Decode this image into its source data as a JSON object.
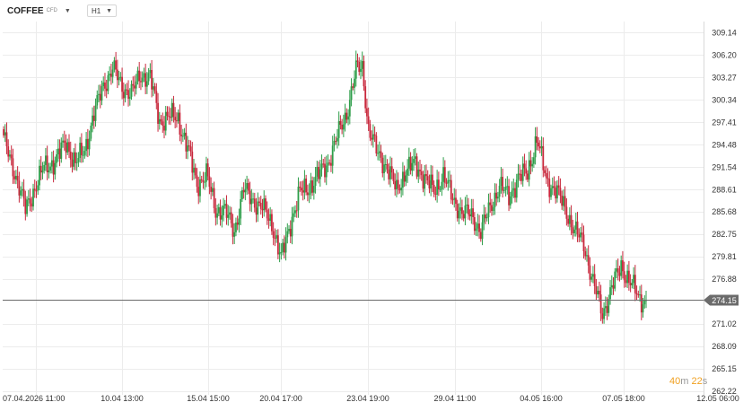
{
  "toolbar": {
    "symbol": "COFFEE",
    "symbol_type": "CFD",
    "timeframe": "H1"
  },
  "timer": {
    "minutes": "40",
    "m": "m",
    "seconds": "22",
    "s": "s"
  },
  "colors": {
    "up": "#2e9e4a",
    "down": "#c8283c",
    "grid": "#ececec",
    "price_line": "#6b6b6b",
    "price_label_bg": "#6b6b6b"
  },
  "chart_data": {
    "type": "candlestick",
    "current_price": "274.15",
    "ylim": [
      262.22,
      310.6
    ],
    "y_ticks": [
      "309.14",
      "306.20",
      "303.27",
      "300.34",
      "297.41",
      "294.48",
      "291.54",
      "288.61",
      "285.68",
      "282.75",
      "279.81",
      "276.88",
      "274.15",
      "271.02",
      "268.09",
      "265.15",
      "262.22"
    ],
    "x_tick_labels": [
      "07.04.2026 11:00",
      "10.04 13:00",
      "15.04 15:00",
      "20.04 17:00",
      "23.04 19:00",
      "29.04 11:00",
      "04.05 16:00",
      "07.05 18:00",
      "12.05 06:00"
    ],
    "grid": true,
    "anchors": [
      [
        0,
        295.2
      ],
      [
        7,
        291.0
      ],
      [
        14,
        286.0
      ],
      [
        20,
        288.8
      ],
      [
        26,
        291.5
      ],
      [
        33,
        292.3
      ],
      [
        40,
        294.8
      ],
      [
        46,
        292.0
      ],
      [
        52,
        293.8
      ],
      [
        58,
        298.5
      ],
      [
        64,
        302.2
      ],
      [
        70,
        304.5
      ],
      [
        76,
        302.0
      ],
      [
        82,
        301.2
      ],
      [
        88,
        303.6
      ],
      [
        94,
        303.3
      ],
      [
        100,
        297.5
      ],
      [
        106,
        298.2
      ],
      [
        112,
        297.8
      ],
      [
        118,
        294.0
      ],
      [
        124,
        289.3
      ],
      [
        130,
        290.5
      ],
      [
        136,
        286.0
      ],
      [
        142,
        285.7
      ],
      [
        148,
        283.2
      ],
      [
        154,
        288.6
      ],
      [
        160,
        287.2
      ],
      [
        166,
        286.1
      ],
      [
        172,
        284.2
      ],
      [
        178,
        279.5
      ],
      [
        184,
        284.3
      ],
      [
        190,
        288.2
      ],
      [
        196,
        288.9
      ],
      [
        202,
        290.5
      ],
      [
        208,
        292.1
      ],
      [
        214,
        295.5
      ],
      [
        220,
        298.6
      ],
      [
        226,
        304.2
      ],
      [
        230,
        304.7
      ],
      [
        234,
        296.6
      ],
      [
        240,
        293.2
      ],
      [
        246,
        291.6
      ],
      [
        252,
        288.4
      ],
      [
        258,
        291.2
      ],
      [
        264,
        291.9
      ],
      [
        270,
        290.2
      ],
      [
        276,
        288.3
      ],
      [
        282,
        290.6
      ],
      [
        288,
        287.3
      ],
      [
        294,
        285.7
      ],
      [
        300,
        285.2
      ],
      [
        306,
        283.2
      ],
      [
        312,
        286.2
      ],
      [
        318,
        289.2
      ],
      [
        324,
        287.6
      ],
      [
        330,
        290.2
      ],
      [
        336,
        290.8
      ],
      [
        342,
        295.3
      ],
      [
        348,
        289.8
      ],
      [
        354,
        288.6
      ],
      [
        360,
        286.2
      ],
      [
        366,
        283.3
      ],
      [
        372,
        281.5
      ],
      [
        378,
        276.5
      ],
      [
        384,
        272.3
      ],
      [
        390,
        275.8
      ],
      [
        396,
        278.6
      ],
      [
        402,
        276.4
      ],
      [
        408,
        274.2
      ],
      [
        412,
        274.15
      ]
    ]
  }
}
